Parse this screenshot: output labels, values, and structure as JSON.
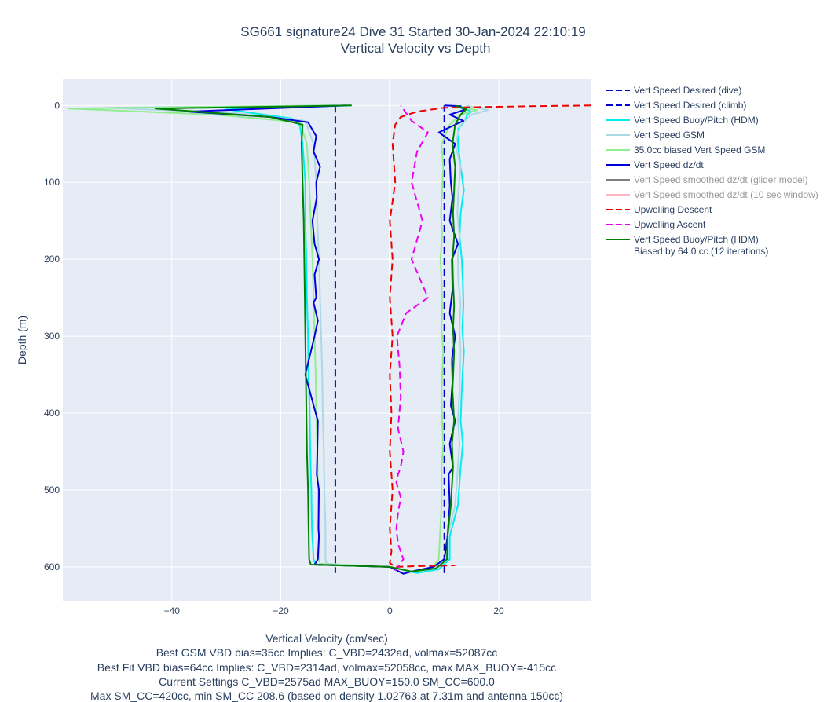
{
  "chart_data": {
    "type": "line",
    "title": "SG661 signature24 Dive 31 Started 30-Jan-2024 22:10:19",
    "subtitle": "Vertical Velocity vs Depth",
    "xlabel": "Vertical Velocity (cm/sec)",
    "xlabel_notes": [
      "Best GSM VBD bias=35cc Implies: C_VBD=2432ad, volmax=52087cc",
      "Best Fit VBD bias=64cc Implies: C_VBD=2314ad, volmax=52058cc, max MAX_BUOY=-415cc",
      "Current Settings C_VBD=2575ad MAX_BUOY=150.0 SM_CC=600.0",
      "Max SM_CC=420cc, min SM_CC 208.6 (based on density 1.02763 at 7.31m and antenna 150cc)"
    ],
    "ylabel": "Depth (m)",
    "xlim": [
      -60,
      37
    ],
    "ylim": [
      645,
      -35
    ],
    "y_reversed": true,
    "x_ticks": [
      -40,
      -20,
      0,
      20
    ],
    "y_ticks": [
      0,
      100,
      200,
      300,
      400,
      500,
      600
    ],
    "grid": true,
    "legend_position": "right",
    "series": [
      {
        "name": "Vert Speed Desired (dive)",
        "color": "#0000cc",
        "dash": "dash",
        "width": 2,
        "muted": false,
        "x": [
          -10,
          -10
        ],
        "y": [
          0,
          608
        ]
      },
      {
        "name": "Vert Speed Desired (climb)",
        "color": "#0000cc",
        "dash": "dash",
        "width": 2,
        "muted": false,
        "x": [
          10,
          10
        ],
        "y": [
          608,
          0
        ]
      },
      {
        "name": "Vert Speed Buoy/Pitch (HDM)",
        "color": "#00eeee",
        "dash": "solid",
        "width": 2,
        "muted": false,
        "x": [
          -7,
          -30,
          -18,
          -16.5,
          -16,
          -15.5,
          -15.5,
          -15.3,
          -15.2,
          -15,
          -14.9,
          -14.7,
          -14.6,
          -14.4,
          -14.3,
          -14,
          -13.6,
          0,
          5,
          9,
          11,
          11,
          12.5,
          13,
          13.4,
          13,
          13.2,
          13.6,
          13.3,
          13.5,
          13.4,
          13.2,
          12.8,
          13,
          13.6,
          13,
          12.5,
          12.6,
          13.8,
          14.2,
          15,
          13.5,
          14,
          13
        ],
        "y": [
          0,
          5,
          17,
          26,
          50,
          100,
          150,
          200,
          250,
          300,
          350,
          400,
          450,
          500,
          550,
          590,
          597,
          600,
          608,
          603,
          590,
          560,
          520,
          470,
          440,
          410,
          370,
          320,
          290,
          260,
          230,
          200,
          170,
          140,
          110,
          80,
          50,
          30,
          20,
          12,
          8,
          4,
          10,
          0
        ]
      },
      {
        "name": "Vert Speed GSM",
        "color": "#add8e6",
        "dash": "solid",
        "width": 2,
        "muted": false,
        "x": [
          -10,
          -52,
          -28,
          -15.5,
          -14,
          -13.5,
          -13.3,
          -13,
          -12.8,
          -12.6,
          -12.4,
          -12.3,
          -12.1,
          -12,
          -11.8,
          -11.8,
          -11.6,
          0,
          4,
          8,
          10.5,
          10.6,
          12,
          12.5,
          12.8,
          12.5,
          12.8,
          13,
          12.8,
          13,
          12.6,
          12.5,
          12.8,
          12.4,
          12.6,
          13,
          12,
          13,
          15,
          18,
          14
        ],
        "y": [
          0,
          3,
          10,
          20,
          50,
          100,
          150,
          200,
          250,
          300,
          350,
          400,
          450,
          500,
          550,
          590,
          596,
          600,
          606,
          603,
          590,
          560,
          520,
          470,
          440,
          410,
          370,
          320,
          290,
          260,
          230,
          200,
          170,
          140,
          110,
          80,
          50,
          25,
          12,
          6,
          0
        ]
      },
      {
        "name": "35.0cc biased Vert Speed GSM",
        "color": "#90ee90",
        "dash": "solid",
        "width": 2,
        "muted": false,
        "x": [
          -10,
          -59,
          -32,
          -16.5,
          -15.2,
          -14.8,
          -14.5,
          -14.2,
          -14,
          -13.8,
          -13.6,
          -13.5,
          -13.3,
          -13.2,
          -13,
          -13,
          -12.8,
          0,
          4,
          7.5,
          9,
          9.2,
          9.5,
          9.5,
          9.8,
          9.6,
          9.5,
          9.8,
          9.5,
          9.6,
          9.5,
          9.3,
          9.6,
          9.4,
          9.6,
          9.8,
          9.5,
          11,
          13,
          16,
          11
        ],
        "y": [
          0,
          4,
          12,
          22,
          50,
          100,
          150,
          200,
          250,
          300,
          350,
          400,
          450,
          500,
          550,
          590,
          596,
          600,
          606,
          603,
          590,
          560,
          520,
          470,
          440,
          410,
          370,
          320,
          290,
          260,
          230,
          200,
          170,
          140,
          110,
          80,
          50,
          25,
          12,
          6,
          0
        ]
      },
      {
        "name": "Vert Speed dz/dt",
        "color": "#0000dd",
        "dash": "solid",
        "width": 2,
        "muted": false,
        "x": [
          -8,
          -37,
          -22,
          -15,
          -13.5,
          -14,
          -12.8,
          -13.5,
          -13.4,
          -14.2,
          -13.8,
          -13,
          -13.8,
          -13.5,
          -14,
          -13.2,
          -13.8,
          -15.5,
          -13.6,
          -13.2,
          -13.3,
          -13.4,
          -13,
          -13.1,
          -13,
          -13.2,
          -13.8,
          0,
          2.5,
          4,
          8,
          10,
          10.6,
          11,
          10.8,
          11.6,
          11,
          12,
          11.2,
          11.5,
          11.4,
          12,
          11,
          11.5,
          11.4,
          12.5,
          11,
          11.5,
          11.2,
          11,
          12,
          10,
          9,
          13.5,
          11,
          14,
          12.5,
          13,
          10
        ],
        "y": [
          0,
          8,
          15,
          22,
          40,
          60,
          80,
          100,
          120,
          150,
          180,
          200,
          220,
          250,
          256,
          280,
          300,
          350,
          400,
          410,
          450,
          480,
          500,
          550,
          560,
          590,
          597,
          600,
          609,
          606,
          600,
          590,
          560,
          520,
          480,
          470,
          440,
          410,
          390,
          360,
          330,
          300,
          270,
          240,
          200,
          180,
          150,
          120,
          100,
          70,
          50,
          40,
          35,
          20,
          12,
          5,
          2,
          1,
          0
        ]
      },
      {
        "name": "Vert Speed smoothed dz/dt (glider model)",
        "color": "#808080",
        "dash": "solid",
        "width": 2,
        "muted": true,
        "x": [],
        "y": []
      },
      {
        "name": "Vert Speed smoothed dz/dt (10 sec window)",
        "color": "#ffb6c1",
        "dash": "solid",
        "width": 2,
        "muted": true,
        "x": [],
        "y": []
      },
      {
        "name": "Upwelling Descent",
        "color": "#ee0000",
        "dash": "dash",
        "width": 2,
        "muted": false,
        "x": [
          37,
          25,
          10,
          5,
          2,
          1,
          0.5,
          1,
          0,
          0.5,
          0,
          0.5,
          0,
          0.3,
          0,
          0.5,
          0,
          0.3,
          0,
          1,
          5,
          12
        ],
        "y": [
          0,
          1,
          3,
          8,
          15,
          25,
          50,
          100,
          150,
          200,
          250,
          300,
          350,
          400,
          450,
          500,
          550,
          580,
          595,
          600,
          599,
          598
        ]
      },
      {
        "name": "Upwelling Ascent",
        "color": "#ee00ee",
        "dash": "dash",
        "width": 2,
        "muted": false,
        "x": [
          1,
          2.5,
          1.5,
          1.2,
          1.5,
          2,
          1.2,
          1.5,
          2,
          2.5,
          1.5,
          2,
          1.8,
          1.3,
          3,
          7,
          4,
          6,
          4,
          5,
          7,
          4,
          3,
          2
        ],
        "y": [
          605,
          590,
          570,
          550,
          530,
          510,
          490,
          480,
          470,
          450,
          420,
          380,
          340,
          300,
          270,
          250,
          200,
          150,
          100,
          60,
          35,
          20,
          10,
          0
        ]
      },
      {
        "name": "Vert Speed Buoy/Pitch (HDM)\nBiased by 64.0 cc (12 iterations)",
        "color": "#008000",
        "dash": "solid",
        "width": 2,
        "muted": false,
        "x": [
          -7,
          -43,
          -22,
          -16,
          -16.2,
          -16,
          -15.8,
          -15.7,
          -15.6,
          -15.5,
          -15.4,
          -15.3,
          -15.2,
          -15,
          -14.9,
          -14.8,
          -14.5,
          0,
          4,
          8.5,
          10.5,
          10.6,
          11.2,
          11.6,
          11.4,
          11.8,
          11.5,
          11.8,
          11.6,
          11.8,
          11.6,
          11.5,
          11.8,
          11.6,
          11.8,
          12,
          11.5,
          12,
          13,
          14,
          12
        ],
        "y": [
          0,
          4,
          15,
          25,
          50,
          100,
          150,
          200,
          250,
          300,
          350,
          400,
          450,
          500,
          550,
          590,
          597,
          600,
          606,
          602,
          590,
          560,
          520,
          470,
          440,
          410,
          370,
          320,
          290,
          260,
          230,
          200,
          170,
          140,
          110,
          80,
          50,
          25,
          12,
          5,
          0
        ]
      }
    ]
  }
}
